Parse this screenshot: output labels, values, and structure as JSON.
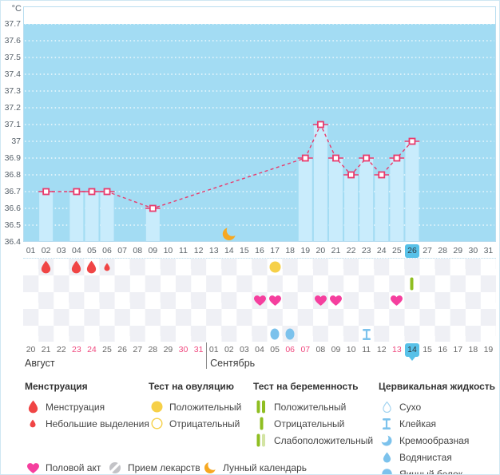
{
  "unit_label": "°C",
  "colors": {
    "plot_bg": "#a3dcf3",
    "bar": "#c9ecfc",
    "grid_dots": "#ffffff",
    "temp_line": "#e93a6c",
    "highlight_day": "#58c1e8",
    "menstruation_red": "#f04545",
    "heart_pink": "#f53f9e",
    "ovulation_yellow": "#f6d048",
    "pregnancy_green": "#8fbe21",
    "pregnancy_pale_green": "#d3e4a3",
    "cervical_blue": "#7cc2ec",
    "moon_orange": "#f6a821",
    "pill_gray": "#c3c3c7",
    "weekend_red": "#f0487e"
  },
  "chart_data": {
    "type": "line",
    "title": "",
    "ylabel": "°C",
    "ylim": [
      36.4,
      37.8
    ],
    "yticks": [
      "37.7",
      "37.6",
      "37.5",
      "37.4",
      "37.3",
      "37.2",
      "37.1",
      "37",
      "36.9",
      "36.8",
      "36.7",
      "36.6",
      "36.5",
      "36.4"
    ],
    "ytick_values": [
      37.7,
      37.6,
      37.5,
      37.4,
      37.3,
      37.2,
      37.1,
      37.0,
      36.9,
      36.8,
      36.7,
      36.6,
      36.5,
      36.4
    ],
    "x_days": [
      "01",
      "02",
      "03",
      "04",
      "05",
      "06",
      "07",
      "08",
      "09",
      "10",
      "11",
      "12",
      "13",
      "14",
      "15",
      "16",
      "17",
      "18",
      "19",
      "20",
      "21",
      "22",
      "23",
      "24",
      "25",
      "26",
      "27",
      "28",
      "29",
      "30",
      "31"
    ],
    "points": [
      {
        "day": 2,
        "temp": 36.7
      },
      {
        "day": 4,
        "temp": 36.7
      },
      {
        "day": 5,
        "temp": 36.7
      },
      {
        "day": 6,
        "temp": 36.7
      },
      {
        "day": 9,
        "temp": 36.6
      },
      {
        "day": 19,
        "temp": 36.9
      },
      {
        "day": 20,
        "temp": 37.1
      },
      {
        "day": 21,
        "temp": 36.9
      },
      {
        "day": 22,
        "temp": 36.8
      },
      {
        "day": 23,
        "temp": 36.9
      },
      {
        "day": 24,
        "temp": 36.8
      },
      {
        "day": 25,
        "temp": 36.9
      },
      {
        "day": 26,
        "temp": 37.0
      }
    ],
    "current_cycle_day": "26",
    "moon_day": 14,
    "grid": "dotted-white",
    "legend_position": "bottom"
  },
  "events": {
    "menstruation": [
      {
        "day": 2,
        "size": "large"
      },
      {
        "day": 4,
        "size": "large"
      },
      {
        "day": 5,
        "size": "large"
      },
      {
        "day": 6,
        "size": "small"
      }
    ],
    "ovulation_test": [
      {
        "day": 17,
        "result": "positive"
      }
    ],
    "pregnancy_test": [
      {
        "day": 26,
        "result": "negative"
      }
    ],
    "intercourse_days": [
      16,
      17,
      20,
      21,
      25
    ],
    "cervical_fluid": [
      {
        "day": 17,
        "type": "egg-white"
      },
      {
        "day": 18,
        "type": "egg-white"
      },
      {
        "day": 23,
        "type": "sticky"
      }
    ]
  },
  "calendar": {
    "dates": [
      "20",
      "21",
      "22",
      "23",
      "24",
      "25",
      "26",
      "27",
      "28",
      "29",
      "30",
      "31",
      "01",
      "02",
      "03",
      "04",
      "05",
      "06",
      "07",
      "08",
      "09",
      "10",
      "11",
      "12",
      "13",
      "14",
      "15",
      "16",
      "17",
      "18",
      "19"
    ],
    "weekend_indices": [
      3,
      4,
      10,
      11,
      17,
      18,
      24
    ],
    "today_index": 25,
    "separator_after_index": 11,
    "month_left": "Август",
    "month_right": "Сентябрь"
  },
  "legend": {
    "columns": [
      {
        "title": "Менструация",
        "items": [
          {
            "icon": "drop-red-large",
            "label": "Менструация"
          },
          {
            "icon": "drop-red-small",
            "label": "Небольшие выделения"
          }
        ]
      },
      {
        "title": "Тест на овуляцию",
        "items": [
          {
            "icon": "circle-yellow-filled",
            "label": "Положительный"
          },
          {
            "icon": "circle-yellow-outline",
            "label": "Отрицательный"
          }
        ]
      },
      {
        "title": "Тест на беременность",
        "items": [
          {
            "icon": "stripes-two-green",
            "label": "Положительный"
          },
          {
            "icon": "stripe-one-green",
            "label": "Отрицательный"
          },
          {
            "icon": "stripes-weak-green",
            "label": "Слабоположительный"
          }
        ]
      },
      {
        "title": "Цервикальная жидкость",
        "items": [
          {
            "icon": "drop-blue-outline",
            "label": "Сухо"
          },
          {
            "icon": "ibeam-blue",
            "label": "Клейкая"
          },
          {
            "icon": "crescent-blue",
            "label": "Кремообразная"
          },
          {
            "icon": "drop-blue-filled",
            "label": "Водянистая"
          },
          {
            "icon": "circle-blue-filled",
            "label": "Яичный белок"
          }
        ]
      }
    ],
    "extra_items": [
      {
        "icon": "heart-pink",
        "label": "Половой акт"
      },
      {
        "icon": "pill-gray",
        "label": "Прием лекарств"
      },
      {
        "icon": "moon-orange",
        "label": "Лунный календарь"
      }
    ]
  }
}
